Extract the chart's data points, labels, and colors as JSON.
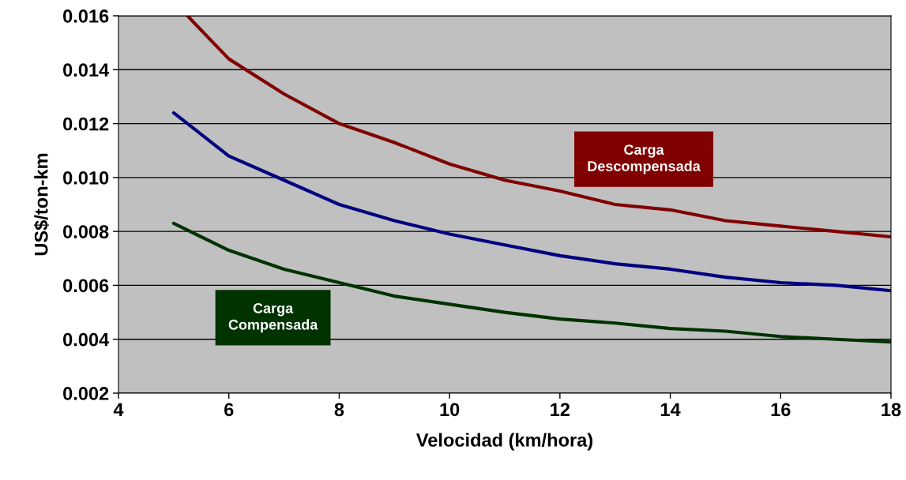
{
  "chart_data": {
    "type": "line",
    "xlabel": "Velocidad (km/hora)",
    "ylabel": "US$/ton-km",
    "xlim": [
      4,
      18
    ],
    "xticks": [
      4,
      6,
      8,
      10,
      12,
      14,
      16,
      18
    ],
    "ylim": [
      0.002,
      0.016
    ],
    "yticks": [
      {
        "value": 0.002,
        "label": "0.002"
      },
      {
        "value": 0.004,
        "label": "0.004"
      },
      {
        "value": 0.006,
        "label": "0.006"
      },
      {
        "value": 0.008,
        "label": "0.008"
      },
      {
        "value": 0.01,
        "label": "0.010"
      },
      {
        "value": 0.012,
        "label": "0.012"
      },
      {
        "value": 0.014,
        "label": "0.014"
      },
      {
        "value": 0.016,
        "label": "0.016"
      }
    ],
    "grid": "y",
    "legend": false,
    "series": [
      {
        "name": "Carga\nDescompensada",
        "color": "#800000",
        "x": [
          5.25,
          6,
          7,
          8,
          9,
          10,
          11,
          12,
          13,
          14,
          15,
          16,
          17,
          18
        ],
        "values": [
          0.016,
          0.0144,
          0.0131,
          0.012,
          0.0113,
          0.0105,
          0.0099,
          0.0095,
          0.009,
          0.0088,
          0.0084,
          0.0082,
          0.008,
          0.0078
        ]
      },
      {
        "color": "#000080",
        "x": [
          5,
          6,
          7,
          8,
          9,
          10,
          11,
          12,
          13,
          14,
          15,
          16,
          17,
          18
        ],
        "values": [
          0.0124,
          0.0108,
          0.0099,
          0.009,
          0.0084,
          0.0079,
          0.0075,
          0.0071,
          0.0068,
          0.0066,
          0.0063,
          0.0061,
          0.006,
          0.0058
        ]
      },
      {
        "name": "Carga\nCompensada",
        "color": "#003300",
        "x": [
          5,
          6,
          7,
          8,
          9,
          10,
          11,
          12,
          13,
          14,
          15,
          16,
          17,
          18
        ],
        "values": [
          0.0083,
          0.0073,
          0.0066,
          0.0061,
          0.0056,
          0.0053,
          0.005,
          0.00475,
          0.0046,
          0.0044,
          0.0043,
          0.0041,
          0.004,
          0.0039
        ]
      }
    ]
  }
}
